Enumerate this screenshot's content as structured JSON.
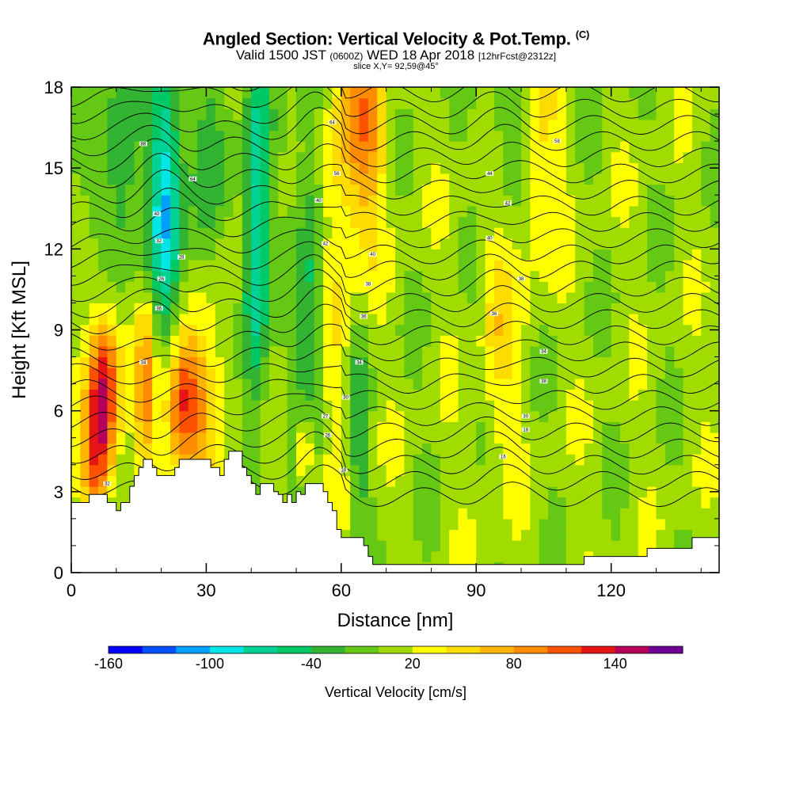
{
  "title": {
    "main": "Angled Section: Vertical Velocity & Pot.Temp.",
    "main_unit": "(C)",
    "valid_prefix": "Valid 1500 JST",
    "valid_utc": "(0600Z)",
    "valid_date": "WED 18 Apr 2018",
    "valid_fcst": "[12hrFcst@2312z]",
    "slice": "slice X,Y= 92,59@45°"
  },
  "chart_data": {
    "type": "heatmap",
    "xlabel": "Distance [nm]",
    "ylabel": "Height [Kft MSL]",
    "xlim": [
      0,
      144
    ],
    "ylim": [
      0,
      18
    ],
    "x_ticks": [
      0,
      30,
      60,
      90,
      120
    ],
    "y_ticks": [
      0,
      3,
      6,
      9,
      12,
      15,
      18
    ],
    "x_minor_step": 10,
    "y_minor_step": 1,
    "colorbar": {
      "title": "Vertical Velocity [cm/s]",
      "levels": [
        -160,
        -140,
        -120,
        -100,
        -80,
        -60,
        -40,
        -20,
        0,
        20,
        40,
        60,
        80,
        100,
        120,
        140,
        160,
        180
      ],
      "colors": [
        "#0000ff",
        "#0050ff",
        "#00a0ff",
        "#00e6e6",
        "#00d296",
        "#00c864",
        "#32b432",
        "#64c814",
        "#a0dc00",
        "#ffff00",
        "#ffdc00",
        "#ffb400",
        "#ff8c00",
        "#ff5000",
        "#e61414",
        "#b4005a",
        "#6e0096"
      ],
      "labels": [
        -160,
        -100,
        -40,
        20,
        80,
        140
      ]
    },
    "terrain_kft": [
      [
        0,
        2.6
      ],
      [
        4,
        2.6
      ],
      [
        4,
        2.9
      ],
      [
        8,
        2.9
      ],
      [
        8,
        2.6
      ],
      [
        10,
        2.6
      ],
      [
        10,
        2.3
      ],
      [
        11,
        2.3
      ],
      [
        11,
        2.6
      ],
      [
        13,
        2.6
      ],
      [
        13,
        3.2
      ],
      [
        14,
        3.2
      ],
      [
        14,
        3.6
      ],
      [
        15,
        3.6
      ],
      [
        15,
        3.9
      ],
      [
        16,
        3.9
      ],
      [
        16,
        4.2
      ],
      [
        18,
        4.2
      ],
      [
        18,
        3.9
      ],
      [
        19,
        3.9
      ],
      [
        19,
        3.6
      ],
      [
        23,
        3.6
      ],
      [
        23,
        3.9
      ],
      [
        24,
        3.9
      ],
      [
        24,
        4.2
      ],
      [
        31,
        4.2
      ],
      [
        31,
        3.9
      ],
      [
        33,
        3.9
      ],
      [
        33,
        3.6
      ],
      [
        34,
        3.6
      ],
      [
        34,
        4.2
      ],
      [
        35,
        4.2
      ],
      [
        35,
        4.5
      ],
      [
        38,
        4.5
      ],
      [
        38,
        3.9
      ],
      [
        39,
        3.9
      ],
      [
        39,
        3.6
      ],
      [
        40,
        3.6
      ],
      [
        40,
        3.3
      ],
      [
        41,
        3.3
      ],
      [
        41,
        2.9
      ],
      [
        42,
        2.9
      ],
      [
        42,
        3.3
      ],
      [
        45,
        3.3
      ],
      [
        45,
        3.0
      ],
      [
        46,
        3.0
      ],
      [
        46,
        2.9
      ],
      [
        47,
        2.9
      ],
      [
        47,
        2.6
      ],
      [
        48,
        2.6
      ],
      [
        48,
        2.9
      ],
      [
        49,
        2.9
      ],
      [
        49,
        2.6
      ],
      [
        50,
        2.6
      ],
      [
        50,
        3.0
      ],
      [
        51,
        3.0
      ],
      [
        51,
        2.9
      ],
      [
        52,
        2.9
      ],
      [
        52,
        3.3
      ],
      [
        56,
        3.3
      ],
      [
        56,
        3.0
      ],
      [
        57,
        3.0
      ],
      [
        57,
        2.6
      ],
      [
        58,
        2.6
      ],
      [
        58,
        2.3
      ],
      [
        59,
        2.3
      ],
      [
        59,
        1.6
      ],
      [
        60,
        1.6
      ],
      [
        60,
        1.3
      ],
      [
        65,
        1.3
      ],
      [
        65,
        1.0
      ],
      [
        66,
        1.0
      ],
      [
        66,
        0.6
      ],
      [
        67,
        0.6
      ],
      [
        67,
        0.3
      ],
      [
        68,
        0.3
      ],
      [
        68,
        0.3
      ],
      [
        114,
        0.3
      ],
      [
        114,
        0.6
      ],
      [
        128,
        0.6
      ],
      [
        128,
        0.9
      ],
      [
        138,
        0.9
      ],
      [
        138,
        1.3
      ],
      [
        144,
        1.3
      ]
    ],
    "updrafts": [
      {
        "x": 7,
        "z": 6.5,
        "w": 150,
        "sx": 2.5,
        "sz": 2.2
      },
      {
        "x": 25,
        "z": 6.3,
        "w": 130,
        "sx": 3.5,
        "sz": 1.8
      },
      {
        "x": 16.5,
        "z": 7.0,
        "w": 80,
        "sx": 1.5,
        "sz": 2.2
      },
      {
        "x": 52,
        "z": 4.5,
        "w": 80,
        "sx": 1.5,
        "sz": 1.0
      },
      {
        "x": 65,
        "z": 16.5,
        "w": 75,
        "sx": 3.5,
        "sz": 3.0
      },
      {
        "x": 57,
        "z": 12.0,
        "w": 45,
        "sx": 4,
        "sz": 6
      },
      {
        "x": 95,
        "z": 9.5,
        "w": 40,
        "sx": 3,
        "sz": 4
      },
      {
        "x": 103,
        "z": 15.0,
        "w": 40,
        "sx": 4,
        "sz": 3
      },
      {
        "x": 5,
        "z": 3.8,
        "w": 60,
        "sx": 2,
        "sz": 1.2
      },
      {
        "x": 33,
        "z": 9.5,
        "w": 35,
        "sx": 3,
        "sz": 3
      }
    ],
    "downdrafts": [
      {
        "x": 21,
        "z": 14.0,
        "w": -100,
        "sx": 2.5,
        "sz": 4
      },
      {
        "x": 41,
        "z": 12.5,
        "w": -100,
        "sx": 2,
        "sz": 5
      },
      {
        "x": 53.5,
        "z": 11.0,
        "w": -80,
        "sx": 2.5,
        "sz": 6
      },
      {
        "x": 11,
        "z": 15.0,
        "w": -55,
        "sx": 3,
        "sz": 3
      },
      {
        "x": 97,
        "z": 16.0,
        "w": -50,
        "sx": 3,
        "sz": 3
      },
      {
        "x": 64,
        "z": 5.5,
        "w": -45,
        "sx": 1.5,
        "sz": 3
      },
      {
        "x": 30,
        "z": 14,
        "w": -35,
        "sx": 4,
        "sz": 4
      }
    ],
    "theta_labels": [
      {
        "x": 16,
        "z": 15.9,
        "t": "88"
      },
      {
        "x": 27,
        "z": 14.6,
        "t": "64"
      },
      {
        "x": 19,
        "z": 13.3,
        "t": "40"
      },
      {
        "x": 19.5,
        "z": 12.3,
        "t": "32"
      },
      {
        "x": 24.5,
        "z": 11.7,
        "t": "28"
      },
      {
        "x": 20,
        "z": 10.9,
        "t": "26"
      },
      {
        "x": 19.5,
        "z": 9.8,
        "t": "36"
      },
      {
        "x": 16,
        "z": 7.8,
        "t": "34"
      },
      {
        "x": 58,
        "z": 16.7,
        "t": "64"
      },
      {
        "x": 59,
        "z": 14.8,
        "t": "56"
      },
      {
        "x": 55,
        "z": 13.8,
        "t": "40"
      },
      {
        "x": 56.5,
        "z": 12.2,
        "t": "42"
      },
      {
        "x": 67,
        "z": 11.8,
        "t": "40"
      },
      {
        "x": 66,
        "z": 10.7,
        "t": "38"
      },
      {
        "x": 65,
        "z": 9.5,
        "t": "36"
      },
      {
        "x": 64,
        "z": 7.8,
        "t": "34"
      },
      {
        "x": 61,
        "z": 6.5,
        "t": "30"
      },
      {
        "x": 56.5,
        "z": 5.8,
        "t": "27"
      },
      {
        "x": 57,
        "z": 5.1,
        "t": "26"
      },
      {
        "x": 60.5,
        "z": 3.8,
        "t": "18"
      },
      {
        "x": 108,
        "z": 16.0,
        "t": "58"
      },
      {
        "x": 93,
        "z": 14.8,
        "t": "44"
      },
      {
        "x": 97,
        "z": 13.7,
        "t": "42"
      },
      {
        "x": 93,
        "z": 12.4,
        "t": "40"
      },
      {
        "x": 100,
        "z": 10.9,
        "t": "38"
      },
      {
        "x": 94,
        "z": 9.6,
        "t": "36"
      },
      {
        "x": 105,
        "z": 8.2,
        "t": "34"
      },
      {
        "x": 105,
        "z": 7.1,
        "t": "38"
      },
      {
        "x": 101,
        "z": 5.8,
        "t": "30"
      },
      {
        "x": 101,
        "z": 5.3,
        "t": "18"
      },
      {
        "x": 96,
        "z": 4.3,
        "t": "16"
      },
      {
        "x": 8,
        "z": 3.3,
        "t": "32"
      }
    ]
  }
}
